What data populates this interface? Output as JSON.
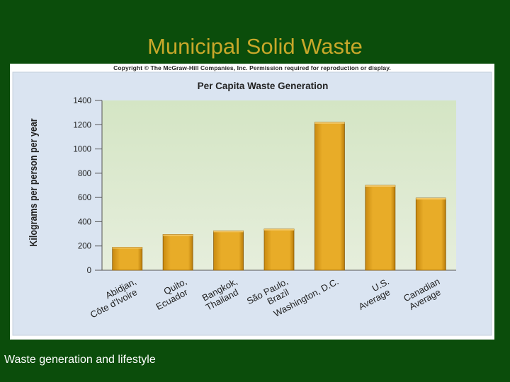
{
  "slide": {
    "title": "Municipal Solid Waste",
    "caption": "Waste generation and lifestyle",
    "copyright": "Copyright © The McGraw-Hill Companies, Inc. Permission required for reproduction or display."
  },
  "colors": {
    "background": "#0b4d0b",
    "title": "#c8a82a",
    "bar": "#e3a523",
    "panel": "#dce6f2",
    "plot_area": "#d6e6c8"
  },
  "chart_data": {
    "type": "bar",
    "title": "Per Capita Waste Generation",
    "ylabel": "Kilograms per person per year",
    "xlabel": "",
    "ylim": [
      0,
      1400
    ],
    "yticks": [
      0,
      200,
      400,
      600,
      800,
      1000,
      1200,
      1400
    ],
    "categories": [
      [
        "Abidjan,",
        "Côte d'Ivoire"
      ],
      [
        "Quito,",
        "Ecuador"
      ],
      [
        "Bangkok,",
        "Thailand"
      ],
      [
        "São Paulo,",
        "Brazil"
      ],
      [
        "Washington, D.C."
      ],
      [
        "U.S.",
        "Average"
      ],
      [
        "Canadian",
        "Average"
      ]
    ],
    "values": [
      190,
      295,
      325,
      340,
      1220,
      700,
      595
    ],
    "grid": false
  }
}
